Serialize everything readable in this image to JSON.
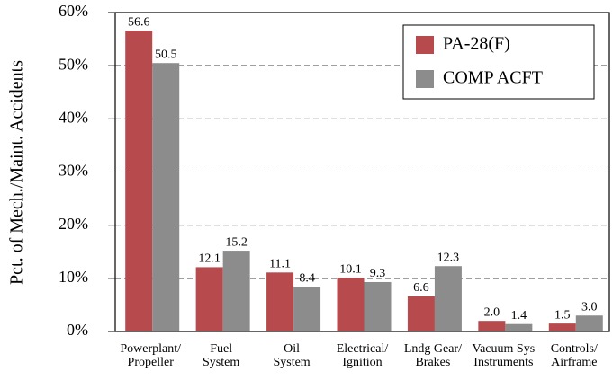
{
  "chart_data": {
    "type": "bar",
    "y_label": "Pct. of Mech./Maint. Accidents",
    "categories": [
      "Powerplant/\nPropeller",
      "Fuel\nSystem",
      "Oil\nSystem",
      "Electrical/\nIgnition",
      "Lndg Gear/\nBrakes",
      "Vacuum Sys\nInstruments",
      "Controls/\nAirframe"
    ],
    "series": [
      {
        "name": "PA-28(F)",
        "color": "#b64a4d",
        "values": [
          56.6,
          12.1,
          11.1,
          10.1,
          6.6,
          2.0,
          1.5
        ],
        "value_labels": [
          "56.6",
          "12.1",
          "11.1",
          "10.1",
          "6.6",
          "2.0",
          "1.5"
        ]
      },
      {
        "name": "COMP ACFT",
        "color": "#8c8c8c",
        "values": [
          50.5,
          15.2,
          8.4,
          9.3,
          12.3,
          1.4,
          3.0
        ],
        "value_labels": [
          "50.5",
          "15.2",
          "8.4",
          "9.3",
          "12.3",
          "1.4",
          "3.0"
        ]
      }
    ],
    "ylim": [
      0,
      60
    ],
    "yticks": [
      {
        "value": 0,
        "label": "0%"
      },
      {
        "value": 10,
        "label": "10%"
      },
      {
        "value": 20,
        "label": "20%"
      },
      {
        "value": 30,
        "label": "30%"
      },
      {
        "value": 40,
        "label": "40%"
      },
      {
        "value": 50,
        "label": "50%"
      },
      {
        "value": 60,
        "label": "60%"
      }
    ],
    "grid": true,
    "legend": "upper right"
  }
}
